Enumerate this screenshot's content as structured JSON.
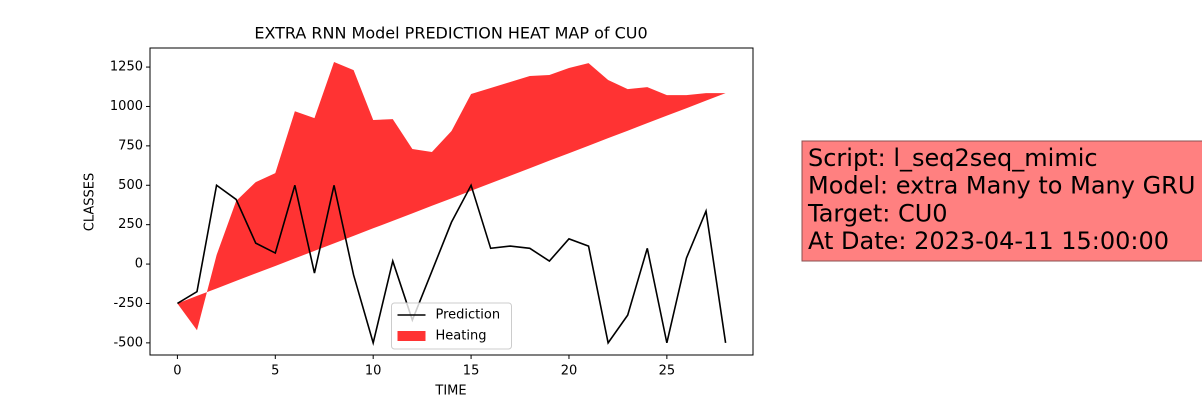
{
  "chart_data": {
    "type": "line-area",
    "title": "EXTRA RNN Model PREDICTION HEAT MAP of CU0",
    "xlabel": "TIME",
    "ylabel": "CLASSES",
    "x": [
      0,
      1,
      2,
      3,
      4,
      5,
      6,
      7,
      8,
      9,
      10,
      11,
      12,
      13,
      14,
      15,
      16,
      17,
      18,
      19,
      20,
      21,
      22,
      23,
      24,
      25,
      26,
      27,
      28
    ],
    "series": [
      {
        "name": "Prediction",
        "color": "#000000",
        "kind": "line",
        "values": [
          -250,
          -175,
          500,
          410,
          133,
          70,
          500,
          -57,
          500,
          -70,
          -500,
          19,
          -355,
          -45,
          266,
          500,
          100,
          114,
          100,
          19,
          160,
          114,
          -500,
          -324,
          100,
          -500,
          38,
          336,
          -500
        ]
      },
      {
        "name": "Heating",
        "color": "#ff0000",
        "kind": "area",
        "values": [
          -250,
          -420,
          57,
          400,
          520,
          577,
          970,
          926,
          1282,
          1231,
          914,
          920,
          730,
          711,
          844,
          1079,
          1117,
          1155,
          1193,
          1200,
          1244,
          1275,
          1168,
          1110,
          1123,
          1072,
          1072,
          1085,
          1085
        ],
        "base": [
          -250,
          -202,
          -155,
          -107,
          -59,
          -12,
          36,
          84,
          131,
          179,
          227,
          274,
          322,
          370,
          417,
          465,
          513,
          560,
          608,
          656,
          703,
          751,
          799,
          846,
          894,
          942,
          989,
          1037,
          1085
        ]
      }
    ],
    "xlim": [
      -1.4,
      29.4
    ],
    "ylim": [
      -577,
      1371
    ],
    "xticks": [
      0,
      5,
      10,
      15,
      20,
      25
    ],
    "yticks": [
      -500,
      -250,
      0,
      250,
      500,
      750,
      1000,
      1250
    ],
    "legend": "lower center",
    "annotation": [
      "Script: l_seq2seq_mimic",
      "Model: extra Many to Many GRU",
      "Target: CU0",
      "At Date: 2023-04-11 15:00:00"
    ]
  }
}
